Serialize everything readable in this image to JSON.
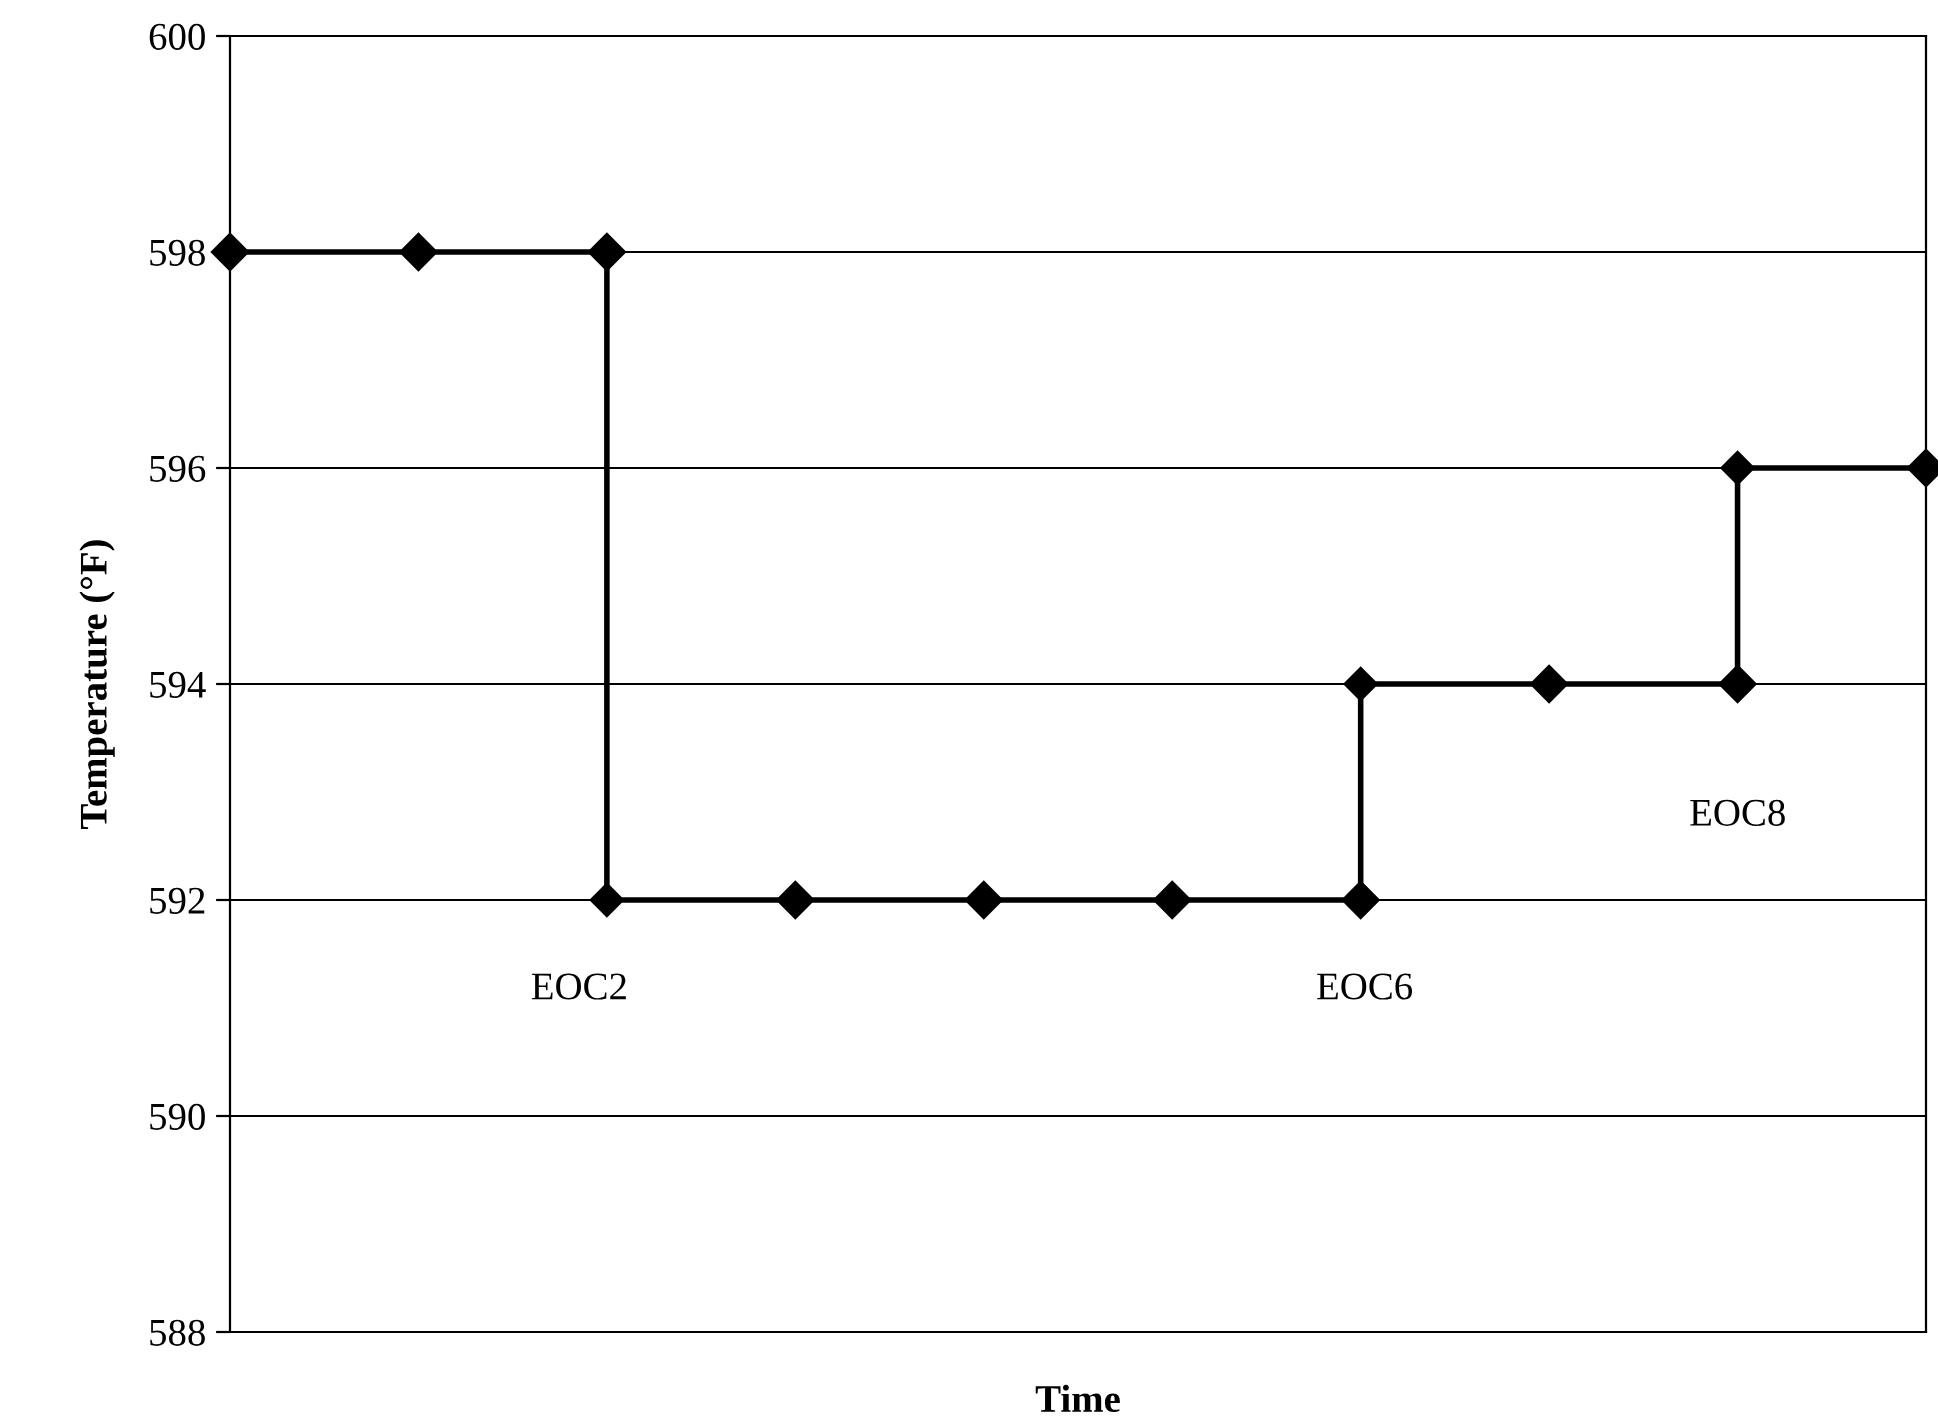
{
  "chart_data": {
    "type": "step",
    "xlabel": "Time",
    "ylabel": "Temperature (°F)",
    "categories": [
      null,
      null,
      null,
      null,
      null,
      null,
      null,
      null,
      null,
      null
    ],
    "series": [
      {
        "color": "#000000",
        "values": [
          598,
          598,
          598,
          592,
          592,
          592,
          592,
          594,
          594,
          596
        ]
      },
      {
        "type": "scatter",
        "color": "#000000",
        "values": [
          null,
          null,
          592,
          null,
          null,
          null,
          594,
          null,
          596,
          null
        ]
      }
    ],
    "ylim": [
      588,
      600
    ],
    "yticks": [
      588,
      590,
      592,
      594,
      596,
      598,
      600
    ],
    "grid": "y",
    "marker": "diamond",
    "line_style": "solid",
    "annotations": [
      "EOC2",
      "EOC6",
      "EOC8"
    ]
  }
}
